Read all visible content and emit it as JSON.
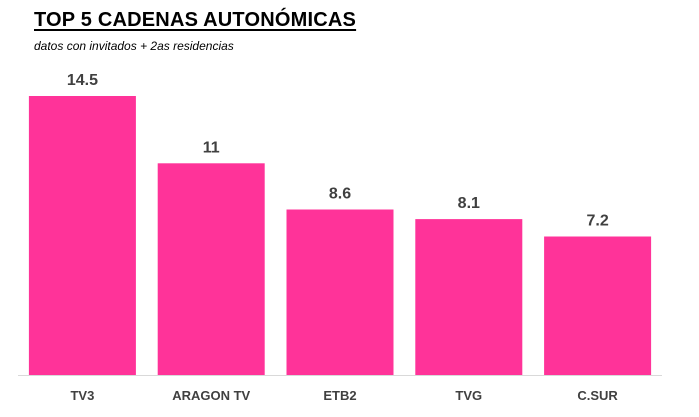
{
  "title": "TOP 5 CADENAS AUTONÓMICAS",
  "subtitle": "datos con invitados + 2as residencias",
  "colors": {
    "bar": "#ff3399",
    "axis": "#d9d9d9",
    "text": "#404040"
  },
  "chart_data": {
    "type": "bar",
    "title": "TOP 5 CADENAS AUTONÓMICAS",
    "subtitle": "datos con invitados + 2as residencias",
    "categories": [
      "TV3",
      "ARAGON TV",
      "ETB2",
      "TVG",
      "C.SUR"
    ],
    "values": [
      14.5,
      11,
      8.6,
      8.1,
      7.2
    ],
    "value_labels": [
      "14.5",
      "11",
      "8.6",
      "8.1",
      "7.2"
    ],
    "xlabel": "",
    "ylabel": "",
    "ylim": [
      0,
      14.5
    ],
    "grid": false,
    "legend": "none"
  }
}
